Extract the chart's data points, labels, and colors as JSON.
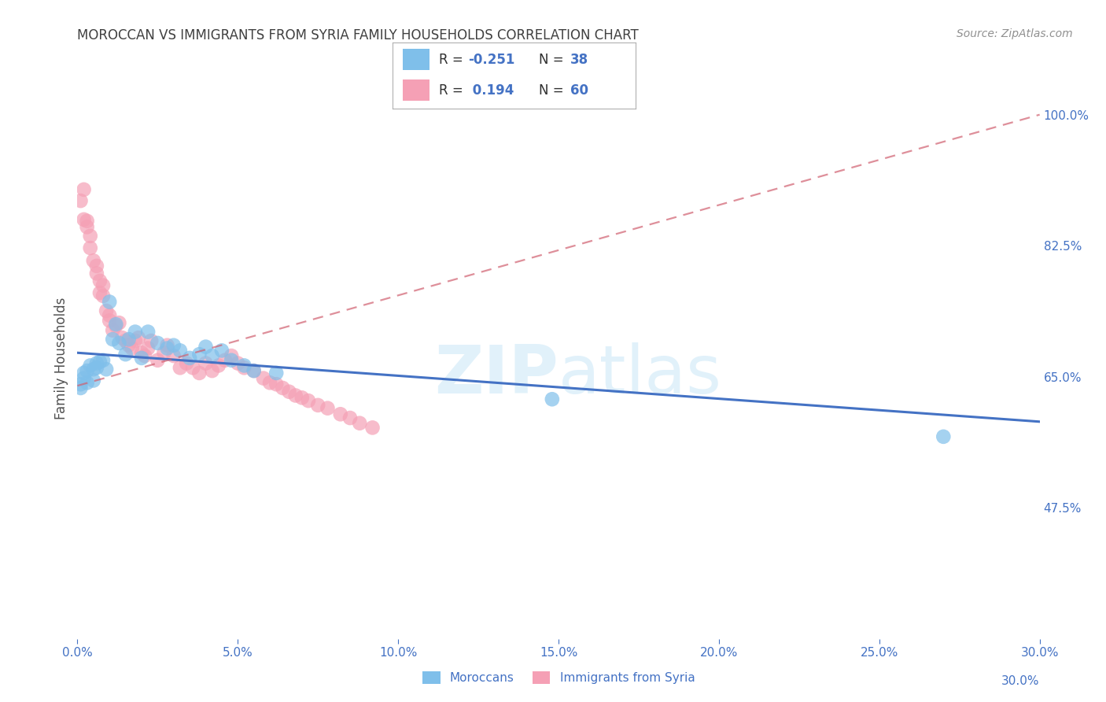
{
  "title": "MOROCCAN VS IMMIGRANTS FROM SYRIA FAMILY HOUSEHOLDS CORRELATION CHART",
  "source": "Source: ZipAtlas.com",
  "ylabel": "Family Households",
  "xlim": [
    0.0,
    0.3
  ],
  "ylim": [
    0.3,
    1.05
  ],
  "xtick_labels": [
    "0.0%",
    "5.0%",
    "10.0%",
    "15.0%",
    "20.0%",
    "25.0%",
    "30.0%"
  ],
  "xtick_vals": [
    0.0,
    0.05,
    0.1,
    0.15,
    0.2,
    0.25,
    0.3
  ],
  "ytick_labels_right": [
    "100.0%",
    "82.5%",
    "65.0%",
    "47.5%"
  ],
  "ytick_vals_right": [
    1.0,
    0.825,
    0.65,
    0.475
  ],
  "blue_color": "#7fbfea",
  "pink_color": "#f5a0b5",
  "blue_line_color": "#4472c4",
  "pink_line_color": "#d06070",
  "legend_label_blue": "Moroccans",
  "legend_label_pink": "Immigrants from Syria",
  "watermark": "ZIPatlas",
  "blue_scatter_x": [
    0.001,
    0.001,
    0.002,
    0.002,
    0.003,
    0.003,
    0.004,
    0.005,
    0.005,
    0.006,
    0.006,
    0.007,
    0.008,
    0.009,
    0.01,
    0.011,
    0.012,
    0.013,
    0.015,
    0.016,
    0.018,
    0.02,
    0.022,
    0.025,
    0.028,
    0.03,
    0.032,
    0.035,
    0.038,
    0.04,
    0.042,
    0.045,
    0.048,
    0.052,
    0.055,
    0.062,
    0.148,
    0.27
  ],
  "blue_scatter_y": [
    0.64,
    0.635,
    0.655,
    0.648,
    0.658,
    0.642,
    0.665,
    0.66,
    0.645,
    0.662,
    0.668,
    0.67,
    0.672,
    0.66,
    0.75,
    0.7,
    0.72,
    0.695,
    0.68,
    0.7,
    0.71,
    0.675,
    0.71,
    0.695,
    0.688,
    0.692,
    0.685,
    0.675,
    0.68,
    0.69,
    0.678,
    0.685,
    0.672,
    0.665,
    0.658,
    0.655,
    0.62,
    0.57
  ],
  "pink_scatter_x": [
    0.001,
    0.002,
    0.002,
    0.003,
    0.003,
    0.004,
    0.004,
    0.005,
    0.006,
    0.006,
    0.007,
    0.007,
    0.008,
    0.008,
    0.009,
    0.01,
    0.01,
    0.011,
    0.012,
    0.013,
    0.014,
    0.015,
    0.016,
    0.017,
    0.018,
    0.019,
    0.02,
    0.021,
    0.022,
    0.023,
    0.025,
    0.027,
    0.028,
    0.03,
    0.032,
    0.034,
    0.036,
    0.038,
    0.04,
    0.042,
    0.044,
    0.046,
    0.048,
    0.05,
    0.052,
    0.055,
    0.058,
    0.06,
    0.062,
    0.064,
    0.066,
    0.068,
    0.07,
    0.072,
    0.075,
    0.078,
    0.082,
    0.085,
    0.088,
    0.092
  ],
  "pink_scatter_y": [
    0.885,
    0.86,
    0.9,
    0.85,
    0.858,
    0.822,
    0.838,
    0.805,
    0.788,
    0.798,
    0.762,
    0.778,
    0.758,
    0.772,
    0.738,
    0.725,
    0.732,
    0.712,
    0.718,
    0.722,
    0.702,
    0.698,
    0.692,
    0.688,
    0.698,
    0.702,
    0.682,
    0.678,
    0.688,
    0.698,
    0.672,
    0.682,
    0.692,
    0.678,
    0.662,
    0.668,
    0.662,
    0.655,
    0.668,
    0.658,
    0.665,
    0.672,
    0.678,
    0.668,
    0.662,
    0.658,
    0.648,
    0.642,
    0.64,
    0.635,
    0.63,
    0.625,
    0.622,
    0.618,
    0.612,
    0.608,
    0.6,
    0.595,
    0.588,
    0.582
  ],
  "blue_trend_x": [
    0.0,
    0.3
  ],
  "blue_trend_y": [
    0.682,
    0.59
  ],
  "pink_trend_x": [
    0.0,
    0.3
  ],
  "pink_trend_y": [
    0.638,
    1.0
  ],
  "grid_color": "#cccccc",
  "title_color": "#404040",
  "axis_color": "#4472c4",
  "background_color": "#ffffff"
}
